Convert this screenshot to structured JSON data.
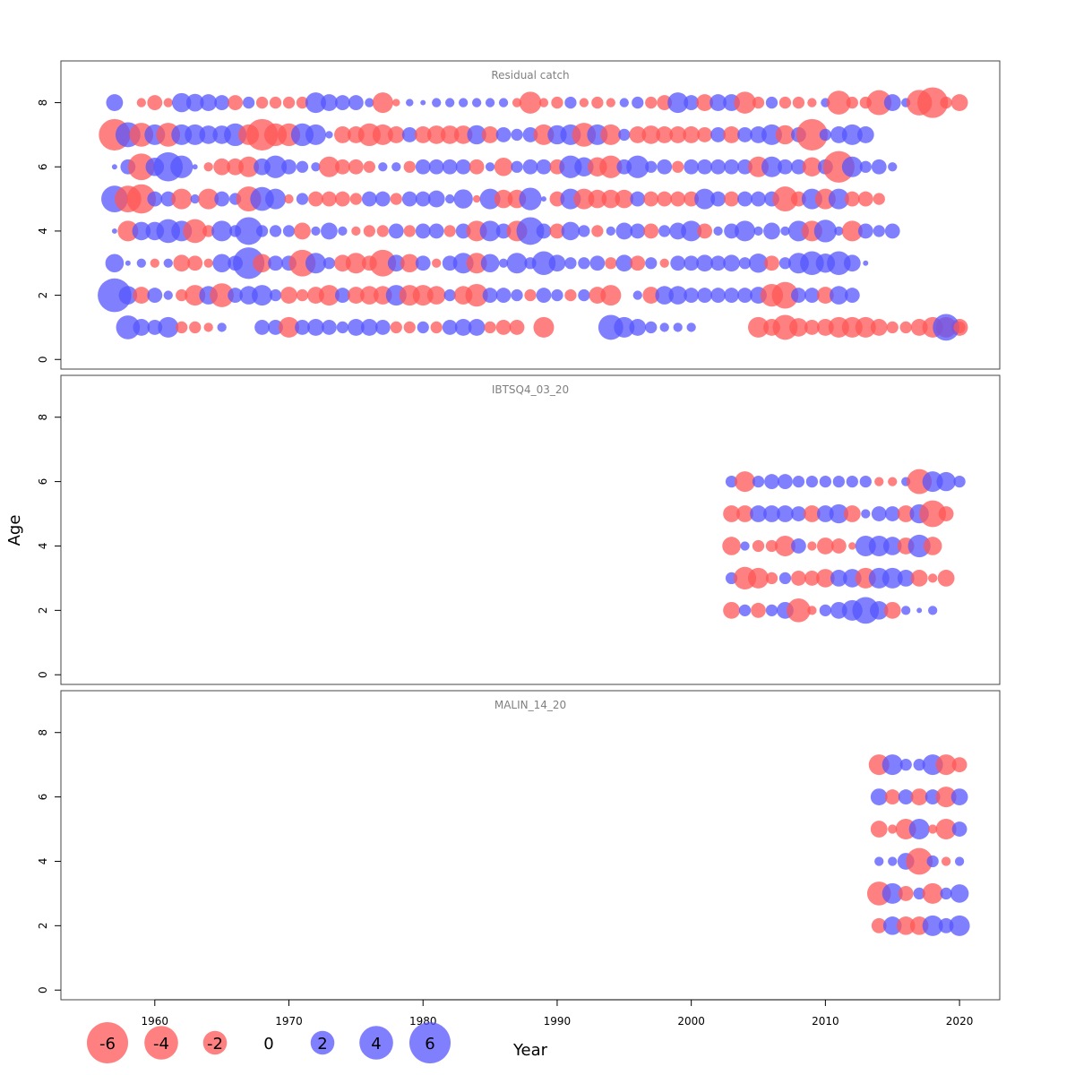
{
  "chart_data": {
    "type": "scatter",
    "subtype": "bubble-residuals",
    "xlabel": "Year",
    "ylabel": "Age",
    "xlim": [
      1953,
      2023
    ],
    "ylim": [
      -0.3,
      9.3
    ],
    "x_ticks": [
      1960,
      1970,
      1980,
      1990,
      2000,
      2010,
      2020
    ],
    "y_ticks": [
      0,
      2,
      4,
      6,
      8
    ],
    "colors": {
      "negative": "#ff5555",
      "positive": "#5555ff",
      "frame": "#444444",
      "title": "#808080"
    },
    "legend": {
      "placement": "bottom-left",
      "values": [
        -6,
        -4,
        -2,
        0,
        2,
        4,
        6
      ],
      "labels": [
        "-6",
        "-4",
        "-2",
        "0",
        "2",
        "4",
        "6"
      ]
    },
    "panels": [
      {
        "title": "Residual catch",
        "year_start": 1957,
        "ages": [
          1,
          2,
          3,
          4,
          5,
          6,
          7,
          8
        ],
        "residuals": {
          "8": [
            1,
            0,
            -0.3,
            -0.8,
            -0.3,
            1.3,
            1.1,
            1,
            0.8,
            -0.8,
            0.5,
            -0.5,
            -0.5,
            -0.5,
            -0.5,
            1.5,
            1,
            0.8,
            0.8,
            0.3,
            -1.5,
            -0.2,
            0.2,
            0.1,
            0.3,
            0.3,
            0.3,
            0.3,
            0.3,
            0.3,
            -0.3,
            -1.7,
            -0.3,
            -0.5,
            0.5,
            -0.3,
            -0.5,
            -0.3,
            0.3,
            0.5,
            -0.5,
            -0.8,
            1.5,
            0.8,
            -1,
            1,
            1,
            -1.7,
            -0.5,
            0.5,
            -0.5,
            -0.5,
            -0.3,
            0.3,
            -2,
            -0.5,
            -0.5,
            -2.2,
            1,
            0.3,
            -2.3,
            -3.3,
            -0.5,
            -1,
            1.2,
            1
          ],
          "7": [
            -3.5,
            2.2,
            -2,
            1.5,
            -2,
            1.5,
            1.5,
            1.2,
            1.2,
            1.8,
            -1.5,
            -3.5,
            -1.8,
            -1.8,
            1.8,
            1.5,
            0.2,
            -1,
            -1,
            -1.8,
            -1.5,
            -1,
            0.8,
            -1,
            -1.2,
            -1.2,
            -1.2,
            1.3,
            -1,
            0.8,
            0.5,
            0.8,
            -1.5,
            1.3,
            1.5,
            -2,
            1.5,
            -1.5,
            0.5,
            -1,
            -1.2,
            -1,
            -1,
            -1,
            -0.8,
            0.8,
            -1,
            0.8,
            1,
            1.5,
            -1.3,
            0.8,
            -3.5,
            0.5,
            1,
            1.5,
            1
          ],
          "6": [
            0.1,
            0.8,
            -2.5,
            1.2,
            3,
            1.8,
            0.1,
            -0.3,
            -1,
            -1,
            -1.5,
            1,
            1.8,
            0.8,
            0.5,
            0.3,
            -1.5,
            -0.8,
            -0.8,
            -0.5,
            0.3,
            0.3,
            -0.5,
            0.8,
            0.8,
            0.8,
            0.8,
            -0.8,
            0.3,
            -1.2,
            0.5,
            0.8,
            0.8,
            -0.8,
            1.8,
            1.3,
            -1.3,
            -1.8,
            0.8,
            1.8,
            0.5,
            0.8,
            -0.5,
            0.8,
            0.8,
            0.8,
            0.8,
            0.8,
            -1.5,
            1.5,
            0.8,
            0.8,
            -1.3,
            0.8,
            -3.5,
            1.5,
            0.5,
            0.8,
            0.3
          ],
          "5": [
            2.5,
            -2.5,
            -3,
            0.8,
            0.8,
            -1.5,
            0.3,
            -1.5,
            0.8,
            0.5,
            -2.2,
            2,
            1.5,
            -0.3,
            0.5,
            -0.8,
            -0.8,
            -0.8,
            -0.5,
            0.8,
            0.8,
            -0.5,
            0.8,
            0.8,
            1,
            0.3,
            1.3,
            -0.2,
            1.5,
            -1.2,
            -1.2,
            1.8,
            0.1,
            -0.8,
            1.5,
            -1.5,
            -1.2,
            -1.2,
            -1.2,
            0.8,
            -0.8,
            -0.8,
            -0.8,
            -0.8,
            1.5,
            0.8,
            -0.8,
            0.8,
            0.8,
            0.8,
            -2.2,
            -0.8,
            1.5,
            -1.5,
            1.5,
            -0.8,
            -0.8,
            -0.5
          ],
          "4": [
            0.1,
            -1.5,
            1.2,
            1.2,
            2,
            1.5,
            -2,
            -0.5,
            1.5,
            0.5,
            2.7,
            0.5,
            0.5,
            0.5,
            -1,
            0.3,
            1,
            0.3,
            -0.3,
            -0.5,
            -0.5,
            0.8,
            -0.5,
            0.8,
            0.8,
            -0.5,
            0.8,
            -1.5,
            1.5,
            0.8,
            -1.5,
            2.7,
            0.8,
            -0.8,
            1.2,
            0.5,
            -0.5,
            0.3,
            1,
            0.8,
            -0.8,
            0.5,
            1,
            1.5,
            -0.8,
            0.3,
            0.8,
            1.5,
            0.3,
            1,
            0.3,
            1.5,
            -1.5,
            1.8,
            0.3,
            -1.5,
            0.8,
            0.5,
            0.8
          ],
          "3": [
            1.2,
            0.1,
            0.3,
            -0.3,
            0.3,
            -1,
            -0.8,
            -0.3,
            1.2,
            0.8,
            3.5,
            -1.2,
            0.8,
            0.8,
            -2.5,
            1.5,
            0.5,
            -1,
            -1.5,
            -0.8,
            -2.5,
            1,
            -1.2,
            0.8,
            -0.3,
            0.8,
            1.5,
            -1.5,
            1.2,
            0.3,
            1.5,
            0.5,
            2,
            1,
            0.5,
            0.5,
            0.8,
            -0.5,
            1,
            -0.8,
            0.5,
            -0.3,
            0.8,
            0.8,
            1,
            0.8,
            1,
            0.5,
            1.3,
            -0.8,
            0.5,
            1.5,
            2,
            1.3,
            2,
            1,
            0.1
          ],
          "2": [
            4,
            1.2,
            -1,
            0.8,
            0.3,
            -0.5,
            -1.5,
            1.2,
            -2,
            0.8,
            1.2,
            1.5,
            0.5,
            -1,
            -0.5,
            -1,
            -1.5,
            0.8,
            -1,
            -1.2,
            -1.2,
            1.5,
            -1.5,
            -1.5,
            -1.2,
            0.5,
            -1.2,
            -1.8,
            0.8,
            0.8,
            0.5,
            -0.5,
            0.8,
            0.5,
            -0.5,
            0.5,
            -1,
            -1.5,
            0,
            0.3,
            -1,
            1.2,
            1.2,
            0.8,
            0.8,
            0.8,
            0.8,
            0.8,
            1,
            -1.8,
            -2.5,
            0.8,
            0.8,
            -1,
            1.2,
            0.8
          ],
          "1": [
            2,
            1,
            0.8,
            1.5,
            -0.5,
            -0.5,
            -0.3,
            0.3,
            0.8,
            0.8,
            -1.5,
            0.8,
            1,
            0.8,
            0.5,
            1,
            1,
            0.8,
            -0.5,
            -0.5,
            0.5,
            -0.5,
            0.8,
            1,
            1,
            -0.5,
            -0.8,
            -0.8,
            -1.5,
            2.2,
            1.5,
            1,
            0.5,
            0.3,
            0.3,
            0.3,
            -1.5,
            -1,
            -2.2,
            -1.2,
            -0.8,
            -1,
            -1.5,
            -1.5,
            -1.5,
            -1,
            -0.5,
            -0.5,
            -1,
            -1.5,
            -1.5,
            -1,
            2.5,
            -0.5
          ],
          "1_years": [
            1958,
            1959,
            1960,
            1961,
            1962,
            1963,
            1964,
            1965,
            1968,
            1969,
            1970,
            1971,
            1972,
            1973,
            1974,
            1975,
            1976,
            1977,
            1978,
            1979,
            1980,
            1981,
            1982,
            1983,
            1984,
            1985,
            1986,
            1987,
            1989,
            1994,
            1995,
            1996,
            1997,
            1998,
            1999,
            2000,
            2005,
            2006,
            2007,
            2008,
            2009,
            2010,
            2011,
            2012,
            2013,
            2014,
            2015,
            2016,
            2017,
            2018,
            2019,
            2020,
            2019,
            2020
          ]
        }
      },
      {
        "title": "IBTSQ4_03_20",
        "year_start": 2003,
        "ages": [
          2,
          3,
          4,
          5,
          6
        ],
        "residuals": {
          "6": [
            0.5,
            -1.5,
            0.5,
            0.8,
            0.8,
            0.5,
            0.5,
            0.5,
            0.5,
            0.5,
            0.5,
            -0.3,
            -0.3,
            0.3,
            -2.2,
            1.5,
            1.3,
            0.5
          ],
          "5": [
            -1,
            -1,
            1,
            1,
            1,
            0.8,
            -1,
            1,
            1.3,
            -1,
            0.3,
            0.8,
            0.8,
            -1,
            1.3,
            -2.5,
            -0.8
          ],
          "4": [
            -1.2,
            0.3,
            -0.5,
            -0.5,
            -1.5,
            0.8,
            -0.3,
            -1,
            -0.8,
            -0.2,
            1.5,
            1.5,
            1.2,
            -1,
            1.8,
            -1.2
          ],
          "3": [
            0.5,
            -1.8,
            -1.5,
            -0.5,
            0.5,
            -0.8,
            -0.8,
            -1.2,
            1,
            1.2,
            -1.5,
            1.5,
            1.5,
            1,
            -1,
            -0.3,
            -1
          ],
          "2": [
            -1,
            0.5,
            -0.8,
            0.5,
            1,
            -2,
            -0.3,
            0.5,
            1,
            1.5,
            2.5,
            1.2,
            -1,
            0.3,
            0.1,
            0.3
          ]
        }
      },
      {
        "title": "MALIN_14_20",
        "year_start": 2014,
        "ages": [
          2,
          3,
          4,
          5,
          6,
          7
        ],
        "residuals": {
          "7": [
            -1.5,
            1.5,
            0.5,
            0.5,
            1.5,
            -1.5,
            -0.8
          ],
          "6": [
            1,
            -0.8,
            0.8,
            -1,
            0.8,
            -1.5,
            1
          ],
          "5": [
            -1,
            -0.3,
            -1.5,
            1.5,
            -0.3,
            -1.5,
            0.8
          ],
          "4": [
            0.3,
            0.3,
            1,
            -2.5,
            0.5,
            -0.3,
            0.3
          ],
          "3": [
            -2,
            1.5,
            -0.8,
            0.5,
            -1.5,
            0.5,
            1.2
          ],
          "2": [
            -0.8,
            1.2,
            -1.2,
            -1.2,
            1.5,
            0.8,
            1.5
          ]
        }
      }
    ]
  }
}
